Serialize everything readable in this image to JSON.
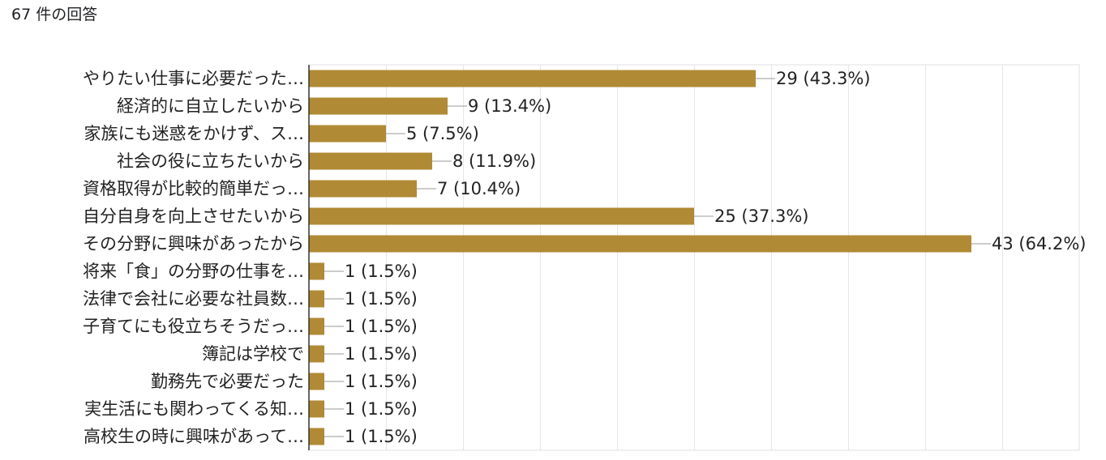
{
  "header": {
    "response_count": "67 件の回答"
  },
  "chart_data": {
    "type": "bar",
    "orientation": "horizontal",
    "categories": [
      "やりたい仕事に必要だった…",
      "経済的に自立したいから",
      "家族にも迷惑をかけず、ス…",
      "社会の役に立ちたいから",
      "資格取得が比較的簡単だっ…",
      "自分自身を向上させたいから",
      "その分野に興味があったから",
      "将来「食」の分野の仕事を…",
      "法律で会社に必要な社員数…",
      "子育てにも役立ちそうだっ…",
      "簿記は学校で",
      "勤務先で必要だった",
      "実生活にも関わってくる知…",
      "高校生の時に興味があって…"
    ],
    "values": [
      29,
      9,
      5,
      8,
      7,
      25,
      43,
      1,
      1,
      1,
      1,
      1,
      1,
      1
    ],
    "data_labels": [
      "29 (43.3%)",
      "9 (13.4%)",
      "5 (7.5%)",
      "8 (11.9%)",
      "7 (10.4%)",
      "25 (37.3%)",
      "43 (64.2%)",
      "1 (1.5%)",
      "1 (1.5%)",
      "1 (1.5%)",
      "1 (1.5%)",
      "1 (1.5%)",
      "1 (1.5%)",
      "1 (1.5%)"
    ],
    "xlim": [
      0,
      50
    ],
    "grid": true,
    "bar_color": "#b08a34"
  }
}
